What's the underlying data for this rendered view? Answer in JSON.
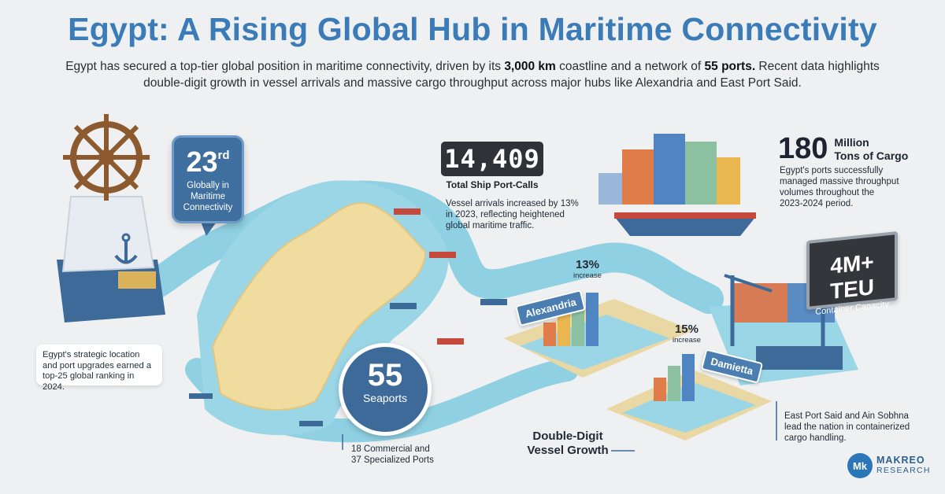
{
  "header": {
    "title": "Egypt: A Rising Global Hub in Maritime Connectivity",
    "intro_1": "Egypt has secured a top-tier global position in maritime connectivity, driven by its ",
    "intro_coast": "3,000 km",
    "intro_2": " coastline and a network of ",
    "intro_ports": "55 ports.",
    "intro_3": " Recent data highlights double-digit growth in vessel arrivals and massive cargo throughput across major hubs like Alexandria and East Port Said."
  },
  "ranking": {
    "value": "23",
    "suffix": "rd",
    "label_1": "Globally in",
    "label_2": "Maritime",
    "label_3": "Connectivity",
    "note": "Egypt's strategic location and port upgrades earned a top-25 global ranking in 2024."
  },
  "port_calls": {
    "value": "14,409",
    "label": "Total Ship Port-Calls",
    "note_1": "Vessel arrivals increased by 13%",
    "note_2": "in 2023, reflecting heightened",
    "note_3": "global maritime traffic."
  },
  "cargo": {
    "value": "180",
    "label_1": "Million",
    "label_2": "Tons of Cargo",
    "note_1": "Egypt's ports successfully",
    "note_2": "managed massive throughput",
    "note_3": "volumes throughout the",
    "note_4": "2023-2024 period."
  },
  "seaports": {
    "value": "55",
    "label": "Seaports",
    "note_1": "18 Commercial and",
    "note_2": "37 Specialized Ports"
  },
  "teu": {
    "value": "4M+ TEU",
    "label": "Container Capacity",
    "note_1": "East Port Said and Ain Sobhna",
    "note_2": "lead the nation in containerized",
    "note_3": "cargo handling."
  },
  "growth": {
    "alexandria_label": "Alexandria",
    "alexandria_pct": "13%",
    "alexandria_inc": "increase",
    "damietta_label": "Damietta",
    "damietta_pct": "15%",
    "damietta_inc": "increase",
    "title_1": "Double-Digit",
    "title_2": "Vessel Growth"
  },
  "brand": {
    "monogram": "Mk",
    "line_1": "MAKREO",
    "line_2": "RESEARCH"
  },
  "colors": {
    "accent_blue": "#3b7cb8",
    "card_blue": "#3f6f9e",
    "water": "#8ccfe0",
    "land": "#f0dca0"
  },
  "icons": {
    "helm": "ship-wheel-icon",
    "anchor": "anchor-icon",
    "logo": "makreo-logo-icon"
  }
}
